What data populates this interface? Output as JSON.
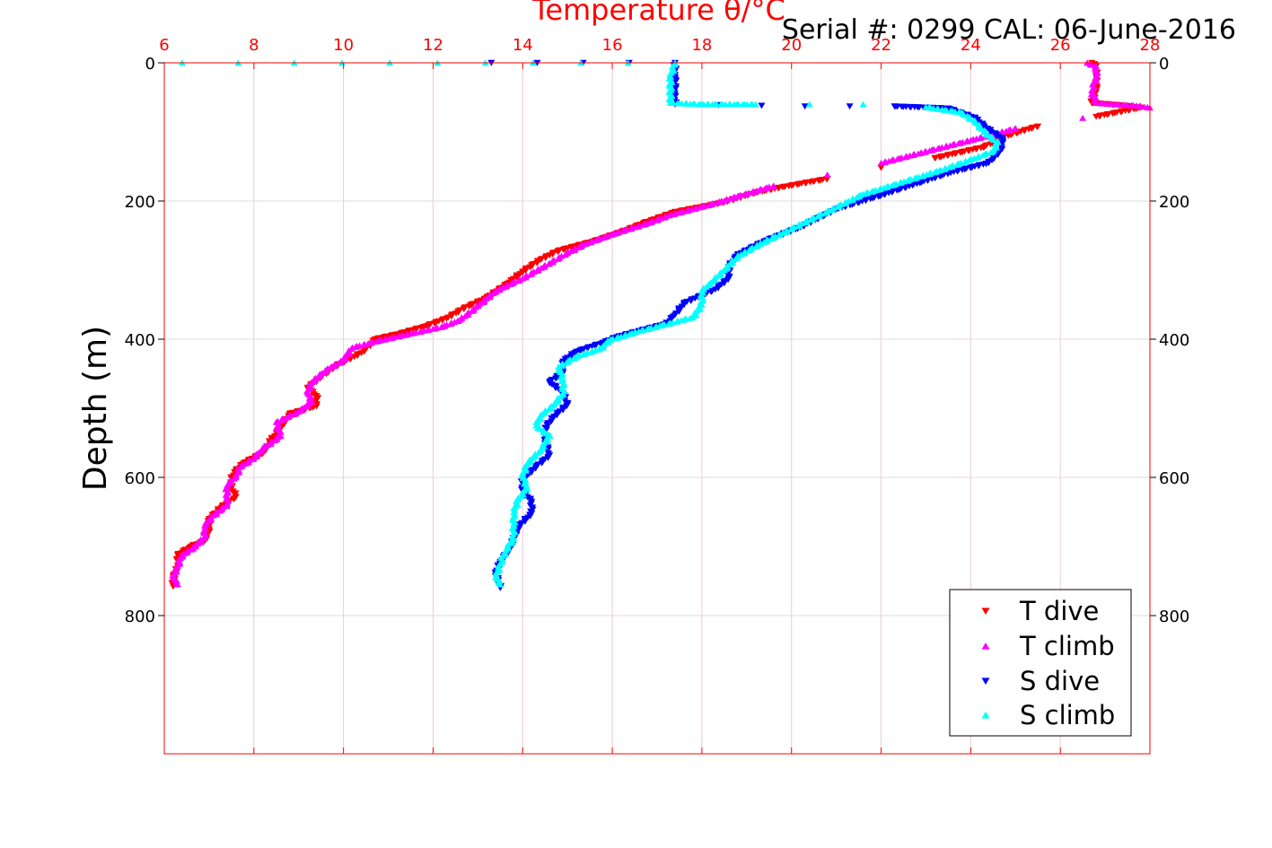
{
  "chart_data": {
    "type": "scatter",
    "title": "Temperature θ/°C",
    "subtitle": "Serial #: 0299 CAL: 06-June-2016",
    "ylabel": "Depth (m)",
    "xlabel": "",
    "xlim": [
      6,
      28
    ],
    "ylim": [
      0,
      1000
    ],
    "y_reversed": true,
    "grid": true,
    "x_axis_position": "top",
    "x_ticks": [
      6,
      8,
      10,
      12,
      14,
      16,
      18,
      20,
      22,
      24,
      26,
      28
    ],
    "y_ticks": [
      0,
      200,
      400,
      600,
      800
    ],
    "legend": {
      "position": "bottom-right",
      "entries": [
        "T dive",
        "T climb",
        "S dive",
        "S climb"
      ]
    },
    "colors": {
      "t_dive": "#ff0000",
      "t_climb": "#ff00ff",
      "s_dive": "#0000ff",
      "s_climb": "#00ffff",
      "axis": "#ff0000",
      "grid_x": "#f0c8d8",
      "grid_y": "#dcdcdc"
    },
    "series": [
      {
        "name": "T dive",
        "marker": "triangle-down",
        "color": "#ff0000",
        "points": [
          [
            26.7,
            0
          ],
          [
            26.8,
            5
          ],
          [
            26.8,
            20
          ],
          [
            26.8,
            40
          ],
          [
            26.7,
            58
          ],
          [
            27.4,
            62
          ],
          [
            27.8,
            65
          ],
          [
            26.8,
            78
          ],
          [
            25.5,
            92
          ],
          [
            24.7,
            108
          ],
          [
            24.3,
            122
          ],
          [
            23.2,
            138
          ],
          [
            22.0,
            152
          ],
          [
            20.8,
            168
          ],
          [
            19.8,
            180
          ],
          [
            19.2,
            188
          ],
          [
            18.5,
            202
          ],
          [
            17.4,
            216
          ],
          [
            16.7,
            232
          ],
          [
            16.2,
            245
          ],
          [
            15.6,
            258
          ],
          [
            14.8,
            272
          ],
          [
            14.4,
            285
          ],
          [
            14.0,
            302
          ],
          [
            13.7,
            318
          ],
          [
            13.2,
            340
          ],
          [
            12.7,
            355
          ],
          [
            12.3,
            370
          ],
          [
            11.8,
            382
          ],
          [
            11.2,
            393
          ],
          [
            10.7,
            400
          ],
          [
            10.6,
            408
          ],
          [
            10.4,
            420
          ],
          [
            9.8,
            440
          ],
          [
            9.5,
            455
          ],
          [
            9.2,
            470
          ],
          [
            9.4,
            482
          ],
          [
            9.4,
            497
          ],
          [
            8.8,
            508
          ],
          [
            8.6,
            528
          ],
          [
            8.4,
            545
          ],
          [
            8.2,
            565
          ],
          [
            7.8,
            578
          ],
          [
            7.6,
            590
          ],
          [
            7.5,
            602
          ],
          [
            7.5,
            615
          ],
          [
            7.6,
            628
          ],
          [
            7.3,
            642
          ],
          [
            7.0,
            660
          ],
          [
            7.0,
            675
          ],
          [
            6.9,
            692
          ],
          [
            6.6,
            700
          ],
          [
            6.3,
            712
          ],
          [
            6.3,
            730
          ],
          [
            6.2,
            745
          ],
          [
            6.2,
            758
          ]
        ]
      },
      {
        "name": "T climb",
        "marker": "triangle-up",
        "color": "#ff00ff",
        "points": [
          [
            26.6,
            0
          ],
          [
            26.8,
            5
          ],
          [
            26.8,
            20
          ],
          [
            26.7,
            40
          ],
          [
            26.8,
            58
          ],
          [
            27.7,
            62
          ],
          [
            28.0,
            65
          ],
          [
            26.5,
            80
          ],
          [
            25.0,
            95
          ],
          [
            24.0,
            112
          ],
          [
            22.9,
            130
          ],
          [
            22.0,
            145
          ],
          [
            20.8,
            162
          ],
          [
            19.6,
            178
          ],
          [
            18.8,
            193
          ],
          [
            18.2,
            205
          ],
          [
            17.3,
            220
          ],
          [
            16.8,
            232
          ],
          [
            16.0,
            248
          ],
          [
            15.4,
            262
          ],
          [
            15.0,
            275
          ],
          [
            14.6,
            290
          ],
          [
            14.0,
            312
          ],
          [
            13.4,
            330
          ],
          [
            13.0,
            352
          ],
          [
            12.6,
            372
          ],
          [
            12.2,
            382
          ],
          [
            11.5,
            392
          ],
          [
            10.8,
            402
          ],
          [
            10.2,
            412
          ],
          [
            10.0,
            430
          ],
          [
            9.6,
            445
          ],
          [
            9.3,
            462
          ],
          [
            9.2,
            478
          ],
          [
            9.3,
            490
          ],
          [
            9.0,
            505
          ],
          [
            8.5,
            520
          ],
          [
            8.6,
            540
          ],
          [
            8.2,
            558
          ],
          [
            8.0,
            572
          ],
          [
            7.7,
            585
          ],
          [
            7.6,
            598
          ],
          [
            7.4,
            612
          ],
          [
            7.4,
            628
          ],
          [
            7.4,
            640
          ],
          [
            7.1,
            655
          ],
          [
            6.9,
            670
          ],
          [
            6.9,
            686
          ],
          [
            6.7,
            700
          ],
          [
            6.4,
            712
          ],
          [
            6.3,
            728
          ],
          [
            6.2,
            745
          ],
          [
            6.3,
            755
          ]
        ]
      },
      {
        "name": "S dive",
        "marker": "triangle-down",
        "color": "#0000ff",
        "points": [
          [
            13.3,
            0
          ],
          [
            17.4,
            0
          ],
          [
            17.4,
            20
          ],
          [
            17.4,
            45
          ],
          [
            17.4,
            60
          ],
          [
            20.3,
            63
          ],
          [
            22.3,
            63
          ],
          [
            23.5,
            66
          ],
          [
            24.1,
            80
          ],
          [
            24.3,
            92
          ],
          [
            24.7,
            110
          ],
          [
            24.7,
            125
          ],
          [
            24.4,
            145
          ],
          [
            23.5,
            160
          ],
          [
            22.8,
            175
          ],
          [
            22.0,
            192
          ],
          [
            21.0,
            212
          ],
          [
            20.2,
            238
          ],
          [
            19.4,
            258
          ],
          [
            18.8,
            278
          ],
          [
            18.6,
            295
          ],
          [
            18.6,
            312
          ],
          [
            18.3,
            328
          ],
          [
            17.6,
            348
          ],
          [
            17.4,
            365
          ],
          [
            17.2,
            378
          ],
          [
            16.6,
            388
          ],
          [
            16.1,
            397
          ],
          [
            15.8,
            405
          ],
          [
            15.2,
            418
          ],
          [
            14.9,
            432
          ],
          [
            14.9,
            448
          ],
          [
            14.6,
            462
          ],
          [
            14.9,
            478
          ],
          [
            15.0,
            495
          ],
          [
            14.7,
            512
          ],
          [
            14.5,
            528
          ],
          [
            14.5,
            548
          ],
          [
            14.6,
            568
          ],
          [
            14.3,
            585
          ],
          [
            14.0,
            603
          ],
          [
            14.0,
            620
          ],
          [
            14.2,
            635
          ],
          [
            14.2,
            652
          ],
          [
            13.9,
            672
          ],
          [
            13.8,
            690
          ],
          [
            13.7,
            705
          ],
          [
            13.5,
            722
          ],
          [
            13.4,
            740
          ],
          [
            13.5,
            760
          ]
        ]
      },
      {
        "name": "S climb",
        "marker": "triangle-up",
        "color": "#00ffff",
        "points": [
          [
            6.4,
            0
          ],
          [
            8.9,
            0
          ],
          [
            15.3,
            0
          ],
          [
            17.4,
            0
          ],
          [
            17.3,
            20
          ],
          [
            17.3,
            45
          ],
          [
            17.3,
            58
          ],
          [
            18.0,
            60
          ],
          [
            19.2,
            60
          ],
          [
            21.6,
            60
          ],
          [
            23.0,
            64
          ],
          [
            23.8,
            72
          ],
          [
            24.1,
            85
          ],
          [
            24.3,
            100
          ],
          [
            24.6,
            115
          ],
          [
            24.5,
            128
          ],
          [
            24.0,
            140
          ],
          [
            23.3,
            156
          ],
          [
            22.6,
            170
          ],
          [
            21.6,
            190
          ],
          [
            20.8,
            215
          ],
          [
            20.0,
            240
          ],
          [
            19.3,
            262
          ],
          [
            18.8,
            280
          ],
          [
            18.5,
            300
          ],
          [
            18.2,
            318
          ],
          [
            18.0,
            330
          ],
          [
            18.0,
            350
          ],
          [
            17.8,
            368
          ],
          [
            17.1,
            380
          ],
          [
            16.5,
            390
          ],
          [
            15.9,
            402
          ],
          [
            15.8,
            412
          ],
          [
            15.2,
            425
          ],
          [
            14.8,
            440
          ],
          [
            14.9,
            458
          ],
          [
            14.9,
            478
          ],
          [
            14.7,
            495
          ],
          [
            14.4,
            510
          ],
          [
            14.3,
            525
          ],
          [
            14.6,
            540
          ],
          [
            14.4,
            560
          ],
          [
            14.1,
            580
          ],
          [
            14.0,
            598
          ],
          [
            14.1,
            615
          ],
          [
            13.9,
            632
          ],
          [
            13.8,
            650
          ],
          [
            13.8,
            668
          ],
          [
            13.8,
            688
          ],
          [
            13.6,
            708
          ],
          [
            13.5,
            725
          ],
          [
            13.4,
            745
          ],
          [
            13.5,
            755
          ]
        ]
      }
    ]
  }
}
